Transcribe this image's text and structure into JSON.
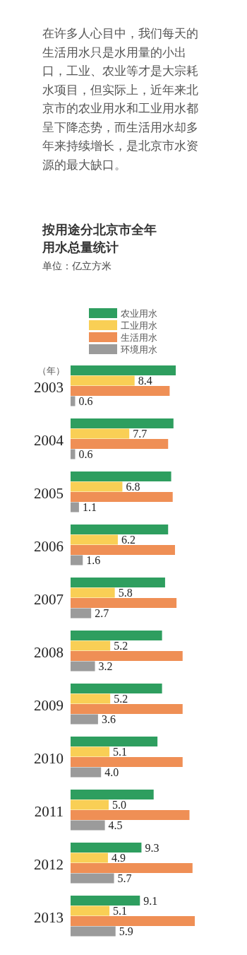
{
  "chart_data": {
    "type": "bar",
    "orientation": "horizontal",
    "title": "按用途分北京市全年用水总量统计",
    "subtitle": "单位：亿立方米",
    "ylabel": "（年）",
    "annotations": [
      "在许多人心目中，我们每天的生活用水只是水用量的小出口，工业、农业等才是大宗耗水项目，但实际上，近年来北京市的农业用水和工业用水都呈下降态势，而生活用水却多年来持续增长，是北京市水资源的最大缺口。"
    ],
    "legend": "top",
    "categories": [
      "2003",
      "2004",
      "2005",
      "2006",
      "2007",
      "2008",
      "2009",
      "2010",
      "2011",
      "2012",
      "2013"
    ],
    "series": [
      {
        "name": "农业用水",
        "color": "#2e9e5f",
        "values": [
          13.8,
          13.5,
          13.2,
          12.8,
          12.4,
          12.0,
          12.0,
          11.4,
          10.9,
          9.3,
          9.1
        ],
        "value_labels": [
          null,
          null,
          null,
          null,
          null,
          null,
          null,
          null,
          null,
          "9.3",
          "9.1"
        ]
      },
      {
        "name": "工业用水",
        "color": "#f9cf55",
        "values": [
          8.4,
          7.7,
          6.8,
          6.2,
          5.8,
          5.2,
          5.2,
          5.1,
          5.0,
          4.9,
          5.1
        ],
        "value_labels": [
          "8.4",
          "7.7",
          "6.8",
          "6.2",
          "5.8",
          "5.2",
          "5.2",
          "5.1",
          "5.0",
          "4.9",
          "5.1"
        ]
      },
      {
        "name": "生活用水",
        "color": "#ef8f55",
        "values": [
          13.0,
          12.8,
          13.4,
          13.7,
          13.9,
          14.7,
          14.7,
          14.7,
          15.6,
          16.0,
          16.3
        ]
      },
      {
        "name": "环境用水",
        "color": "#9b9b9b",
        "values": [
          0.6,
          0.6,
          1.1,
          1.6,
          2.7,
          3.2,
          3.6,
          4.0,
          4.5,
          5.7,
          5.9
        ],
        "value_labels": [
          "0.6",
          "0.6",
          "1.1",
          "1.6",
          "2.7",
          "3.2",
          "3.6",
          "4.0",
          "4.5",
          "5.7",
          "5.9"
        ]
      }
    ]
  }
}
